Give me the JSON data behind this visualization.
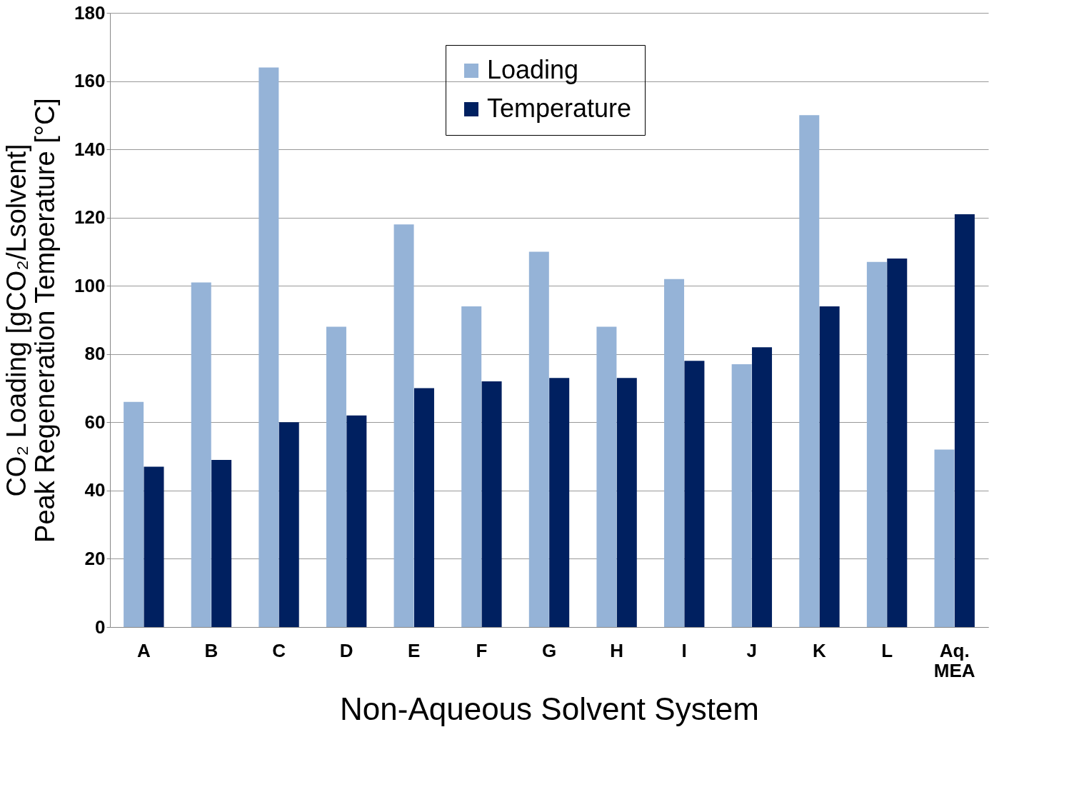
{
  "chart_data": {
    "type": "bar",
    "xlabel": "Non-Aqueous Solvent System",
    "ylabel": "CO₂ Loading [gCO₂/Lsolvent]\nPeak Regeneration Temperature [°C]",
    "categories": [
      "A",
      "B",
      "C",
      "D",
      "E",
      "F",
      "G",
      "H",
      "I",
      "J",
      "K",
      "L",
      "Aq. MEA"
    ],
    "series": [
      {
        "name": "Loading",
        "color": "#95b3d7",
        "values": [
          66,
          101,
          164,
          88,
          118,
          94,
          110,
          88,
          102,
          77,
          150,
          107,
          52
        ]
      },
      {
        "name": "Temperature",
        "color": "#002060",
        "values": [
          47,
          49,
          60,
          62,
          70,
          72,
          73,
          73,
          78,
          82,
          94,
          108,
          121
        ]
      }
    ],
    "ylim": [
      0,
      180
    ],
    "yticks": [
      0,
      20,
      40,
      60,
      80,
      100,
      120,
      140,
      160,
      180
    ],
    "grid": "y",
    "legend": "top"
  }
}
